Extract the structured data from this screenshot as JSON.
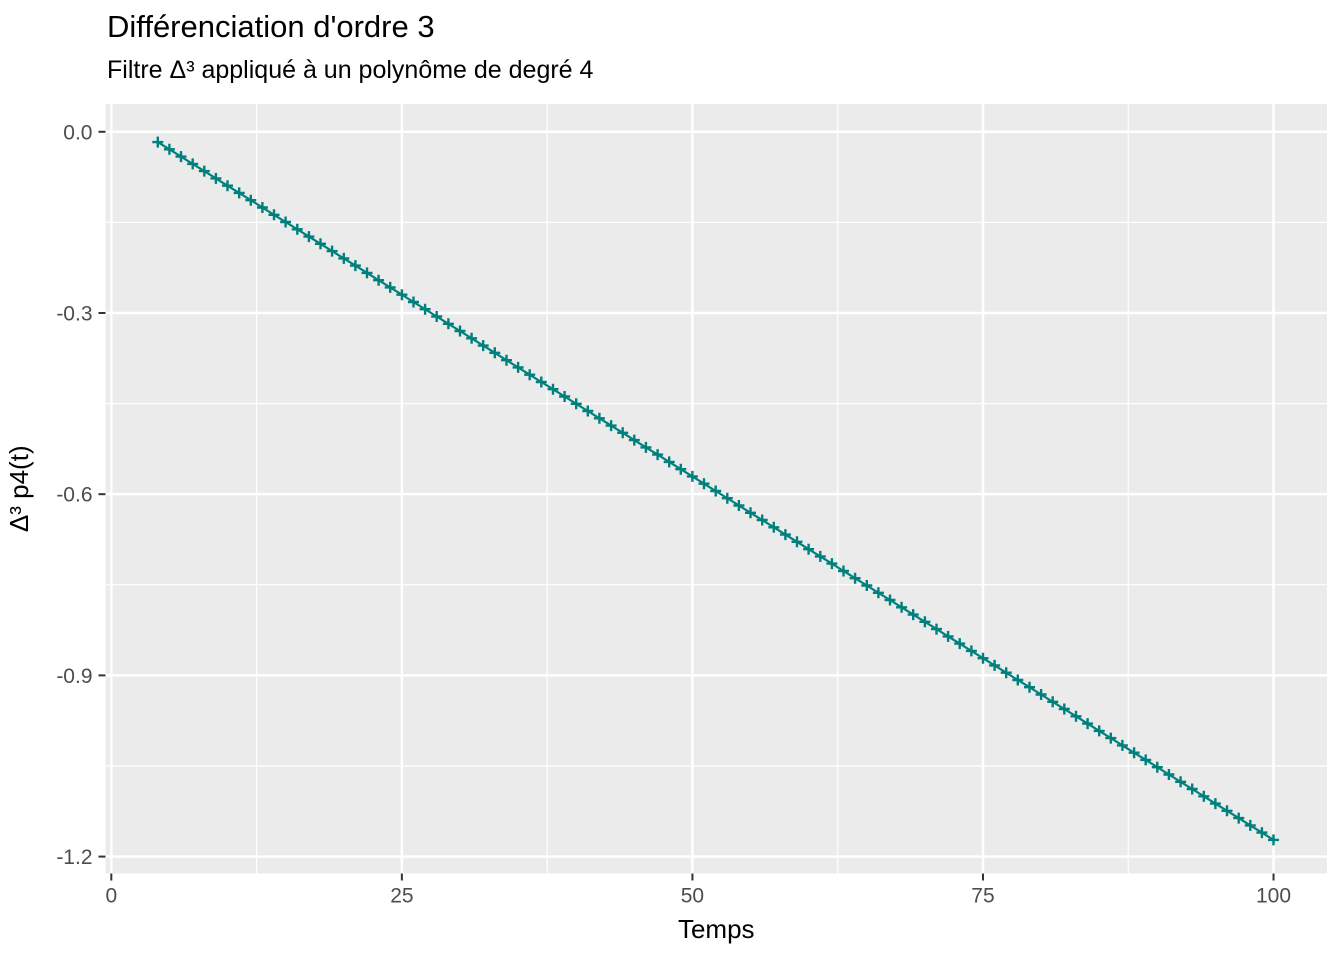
{
  "chart_data": {
    "type": "line",
    "title": "Différenciation d'ordre 3",
    "subtitle": "Filtre Δ³ appliqué à un polynôme de degré 4",
    "xlabel": "Temps",
    "ylabel": "Δ³ p4(t)",
    "legend": "none",
    "grid": "major and minor, white on gray panel",
    "marker": "plus",
    "x_start": 4,
    "x_end": 100,
    "x_step": 1,
    "values": [
      -0.017,
      -0.029,
      -0.0411,
      -0.0531,
      -0.0651,
      -0.0772,
      -0.0892,
      -0.1012,
      -0.1133,
      -0.1253,
      -0.1374,
      -0.1494,
      -0.1614,
      -0.1735,
      -0.1855,
      -0.1975,
      -0.2096,
      -0.2216,
      -0.2336,
      -0.2457,
      -0.2577,
      -0.2697,
      -0.2818,
      -0.2938,
      -0.3058,
      -0.3179,
      -0.3299,
      -0.3419,
      -0.354,
      -0.366,
      -0.3781,
      -0.3901,
      -0.4021,
      -0.4142,
      -0.4262,
      -0.4382,
      -0.4503,
      -0.4623,
      -0.4743,
      -0.4864,
      -0.4984,
      -0.5104,
      -0.5225,
      -0.5345,
      -0.5465,
      -0.5586,
      -0.5706,
      -0.5827,
      -0.5947,
      -0.6067,
      -0.6188,
      -0.6308,
      -0.6428,
      -0.6549,
      -0.6669,
      -0.6789,
      -0.691,
      -0.703,
      -0.715,
      -0.7271,
      -0.7391,
      -0.7511,
      -0.7632,
      -0.7752,
      -0.7873,
      -0.7993,
      -0.8113,
      -0.8234,
      -0.8354,
      -0.8474,
      -0.8595,
      -0.8715,
      -0.8835,
      -0.8956,
      -0.9076,
      -0.9196,
      -0.9317,
      -0.9437,
      -0.9557,
      -0.9678,
      -0.9798,
      -0.9919,
      -1.0039,
      -1.0159,
      -1.028,
      -1.04,
      -1.052,
      -1.0641,
      -1.0761,
      -1.0881,
      -1.1002,
      -1.1122,
      -1.1242,
      -1.1363,
      -1.1483,
      -1.1603,
      -1.1724
    ],
    "x_domain": [
      -0.5,
      104.6
    ],
    "y_domain": [
      -1.228,
      0.046
    ],
    "x_tick_values": [
      0,
      25,
      50,
      75,
      100
    ],
    "x_tick_labels": [
      "0",
      "25",
      "50",
      "75",
      "100"
    ],
    "y_tick_values": [
      0.0,
      -0.3,
      -0.6,
      -0.9,
      -1.2
    ],
    "y_tick_labels": [
      "0.0",
      "-0.3",
      "-0.6",
      "-0.9",
      "-1.2"
    ],
    "x_minor": [
      12.5,
      37.5,
      62.5,
      87.5
    ],
    "y_minor": [
      -0.15,
      -0.45,
      -0.75,
      -1.05
    ],
    "colors": {
      "series": "#00807C",
      "panel": "#EBEBEB",
      "grid": "#FFFFFF",
      "tick": "#333333",
      "tick_label": "#4D4D4D",
      "axis_title": "#000000",
      "title_text": "#000000"
    }
  }
}
